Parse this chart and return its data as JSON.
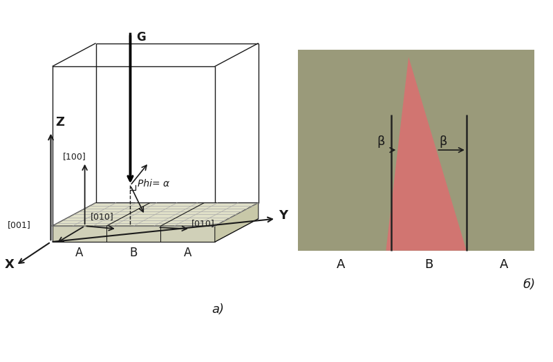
{
  "fig_width": 8.0,
  "fig_height": 5.24,
  "dpi": 100,
  "bg_color": "#ffffff",
  "panel_a_label": "а)",
  "panel_b_label": "б)",
  "axis_label_Z": "Z",
  "axis_label_Y": "Y",
  "axis_label_X": "X",
  "G_label": "G",
  "phi_label": "Phi= α",
  "lbl_001": "[001]",
  "lbl_100": "[100]",
  "lbl_010a": "[010]",
  "lbl_010b": "[010]",
  "bottom_labels": [
    "A",
    "B",
    "A"
  ],
  "beta_label": "β",
  "tan_color": "#9a9a7a",
  "triangle_color": "#d97070",
  "triangle_alpha": 0.88,
  "line_color": "#1a1a1a",
  "slab_top_color": "#e0e0c8",
  "slab_front_color": "#d0d0b8",
  "slab_right_color": "#c8c8a8",
  "hatch_line_color": "#aaaaaa"
}
